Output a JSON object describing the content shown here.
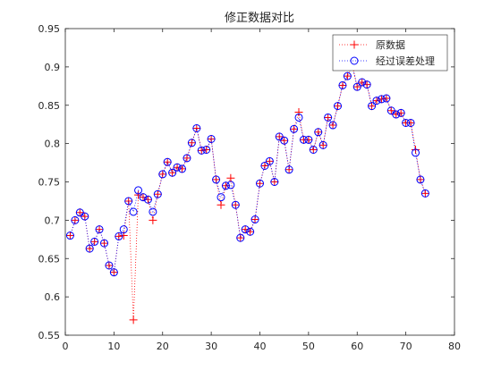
{
  "chart_data": {
    "type": "line",
    "title": "修正数据对比",
    "xlabel": "",
    "ylabel": "",
    "xlim": [
      0,
      80
    ],
    "ylim": [
      0.55,
      0.95
    ],
    "xticks": [
      0,
      10,
      20,
      30,
      40,
      50,
      60,
      70,
      80
    ],
    "yticks": [
      0.55,
      0.6,
      0.65,
      0.7,
      0.75,
      0.8,
      0.85,
      0.9,
      0.95
    ],
    "xtick_labels": [
      "0",
      "10",
      "20",
      "30",
      "40",
      "50",
      "60",
      "70",
      "80"
    ],
    "ytick_labels": [
      "0.55",
      "0.6",
      "0.65",
      "0.7",
      "0.75",
      "0.8",
      "0.85",
      "0.9",
      "0.95"
    ],
    "grid": false,
    "legend_position": "top-right",
    "x": [
      1,
      2,
      3,
      4,
      5,
      6,
      7,
      8,
      9,
      10,
      11,
      12,
      13,
      14,
      15,
      16,
      17,
      18,
      19,
      20,
      21,
      22,
      23,
      24,
      25,
      26,
      27,
      28,
      29,
      30,
      31,
      32,
      33,
      34,
      35,
      36,
      37,
      38,
      39,
      40,
      41,
      42,
      43,
      44,
      45,
      46,
      47,
      48,
      49,
      50,
      51,
      52,
      53,
      54,
      55,
      56,
      57,
      58,
      59,
      60,
      61,
      62,
      63,
      64,
      65,
      66,
      67,
      68,
      69,
      70,
      71,
      72,
      73,
      74
    ],
    "series": [
      {
        "name": "原数据",
        "color": "#ff0000",
        "marker": "plus",
        "line_style": "dotted",
        "values": [
          0.68,
          0.7,
          0.71,
          0.705,
          0.663,
          0.672,
          0.688,
          0.67,
          0.641,
          0.632,
          0.679,
          0.68,
          0.725,
          0.57,
          0.733,
          0.73,
          0.727,
          0.7,
          0.734,
          0.76,
          0.776,
          0.762,
          0.769,
          0.767,
          0.781,
          0.801,
          0.82,
          0.791,
          0.792,
          0.806,
          0.753,
          0.72,
          0.745,
          0.755,
          0.72,
          0.677,
          0.688,
          0.685,
          0.701,
          0.748,
          0.771,
          0.777,
          0.75,
          0.809,
          0.804,
          0.766,
          0.819,
          0.841,
          0.805,
          0.805,
          0.792,
          0.815,
          0.798,
          0.834,
          0.824,
          0.849,
          0.876,
          0.888,
          0.902,
          0.874,
          0.88,
          0.877,
          0.849,
          0.856,
          0.858,
          0.859,
          0.843,
          0.838,
          0.84,
          0.827,
          0.827,
          0.792,
          0.753,
          0.735
        ]
      },
      {
        "name": "经过误差处理",
        "color": "#0000ff",
        "marker": "circle",
        "line_style": "dotted",
        "values": [
          0.68,
          0.7,
          0.71,
          0.705,
          0.663,
          0.672,
          0.688,
          0.67,
          0.641,
          0.632,
          0.679,
          0.688,
          0.725,
          0.711,
          0.739,
          0.73,
          0.727,
          0.711,
          0.734,
          0.76,
          0.776,
          0.762,
          0.769,
          0.767,
          0.781,
          0.801,
          0.82,
          0.791,
          0.792,
          0.806,
          0.753,
          0.73,
          0.745,
          0.746,
          0.72,
          0.677,
          0.688,
          0.685,
          0.701,
          0.748,
          0.771,
          0.777,
          0.75,
          0.809,
          0.804,
          0.766,
          0.819,
          0.834,
          0.805,
          0.805,
          0.792,
          0.815,
          0.798,
          0.834,
          0.824,
          0.849,
          0.876,
          0.888,
          0.902,
          0.874,
          0.88,
          0.877,
          0.849,
          0.856,
          0.858,
          0.859,
          0.843,
          0.838,
          0.84,
          0.827,
          0.827,
          0.788,
          0.753,
          0.735
        ]
      }
    ]
  }
}
